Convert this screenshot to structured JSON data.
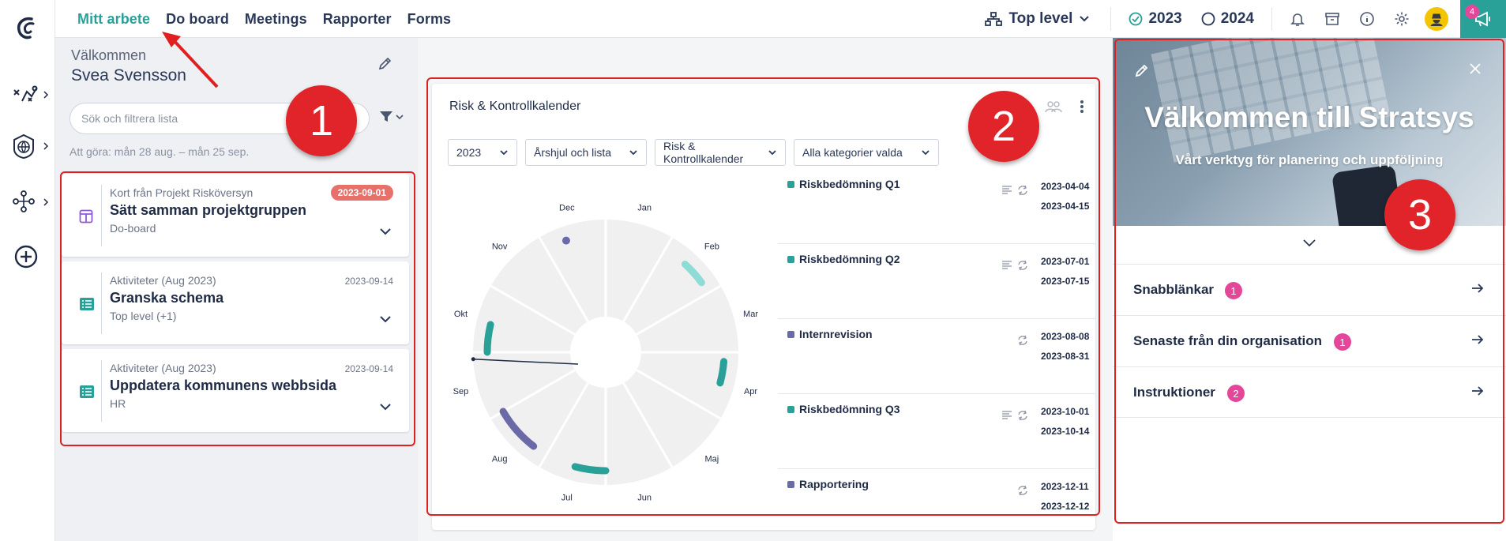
{
  "topbar": {
    "nav": [
      "Mitt arbete",
      "Do board",
      "Meetings",
      "Rapporter",
      "Forms"
    ],
    "level": "Top level",
    "year_current": "2023",
    "year_next": "2024",
    "notification_count": "4"
  },
  "sidebar_icons": [
    "stratsys-logo-icon",
    "strategy-icon",
    "globe-icon",
    "org-icon",
    "add-icon"
  ],
  "left": {
    "welcome": "Välkommen",
    "user_name": "Svea Svensson",
    "search_placeholder": "Sök och filtrera lista",
    "todo_range": "Att göra: mån 28 aug. – mån 25 sep.",
    "cards": [
      {
        "source": "Kort från Projekt Risköversyn",
        "title": "Sätt samman projektgruppen",
        "context": "Do-board",
        "date": "2023-09-01",
        "overdue": true,
        "icon": "board-icon"
      },
      {
        "source": "Aktiviteter (Aug 2023)",
        "title": "Granska schema",
        "context": "Top level (+1)",
        "date": "2023-09-14",
        "overdue": false,
        "icon": "activity-list-icon"
      },
      {
        "source": "Aktiviteter (Aug 2023)",
        "title": "Uppdatera kommunens webbsida",
        "context": "HR",
        "date": "2023-09-14",
        "overdue": false,
        "icon": "activity-list-icon"
      }
    ]
  },
  "widget": {
    "title": "Risk & Kontrollkalender",
    "filters": [
      "2023",
      "Årshjul och lista",
      "Risk & Kontrollkalender",
      "Alla kategorier valda"
    ],
    "months": [
      "Jan",
      "Feb",
      "Mar",
      "Apr",
      "Maj",
      "Jun",
      "Jul",
      "Aug",
      "Sep",
      "Okt",
      "Nov",
      "Dec"
    ],
    "events": [
      {
        "name": "Riskbedömning Q1",
        "start": "2023-04-04",
        "end": "2023-04-15",
        "color": "#2aa198",
        "has_desc": true
      },
      {
        "name": "Riskbedömning Q2",
        "start": "2023-07-01",
        "end": "2023-07-15",
        "color": "#2aa198",
        "has_desc": true
      },
      {
        "name": "Internrevision",
        "start": "2023-08-08",
        "end": "2023-08-31",
        "color": "#6b6aa8",
        "has_desc": false
      },
      {
        "name": "Riskbedömning Q3",
        "start": "2023-10-01",
        "end": "2023-10-14",
        "color": "#2aa198",
        "has_desc": true
      },
      {
        "name": "Rapportering",
        "start": "2023-12-11",
        "end": "2023-12-12",
        "color": "#6b6aa8",
        "has_desc": false
      }
    ],
    "wheel_arcs": [
      {
        "month_start": 1.4,
        "month_end": 1.8,
        "color": "#8fdcd6"
      },
      {
        "month_start": 3.15,
        "month_end": 3.5,
        "color": "#2aa198"
      },
      {
        "month_start": 6.0,
        "month_end": 6.5,
        "color": "#2aa198"
      },
      {
        "month_start": 7.25,
        "month_end": 8.0,
        "color": "#6b6aa8"
      },
      {
        "month_start": 9.0,
        "month_end": 9.45,
        "color": "#2aa198"
      },
      {
        "month_start": 11.35,
        "month_end": 11.42,
        "color": "#6b6aa8"
      }
    ],
    "today_month": 8.9
  },
  "right": {
    "hero_title": "Välkommen till Stratsys",
    "hero_subtitle": "Vårt verktyg för planering och uppföljning",
    "items": [
      {
        "label": "Snabblänkar",
        "count": "1"
      },
      {
        "label": "Senaste från din organisation",
        "count": "1"
      },
      {
        "label": "Instruktioner",
        "count": "2"
      }
    ]
  },
  "annotations": [
    "1",
    "2",
    "3"
  ]
}
